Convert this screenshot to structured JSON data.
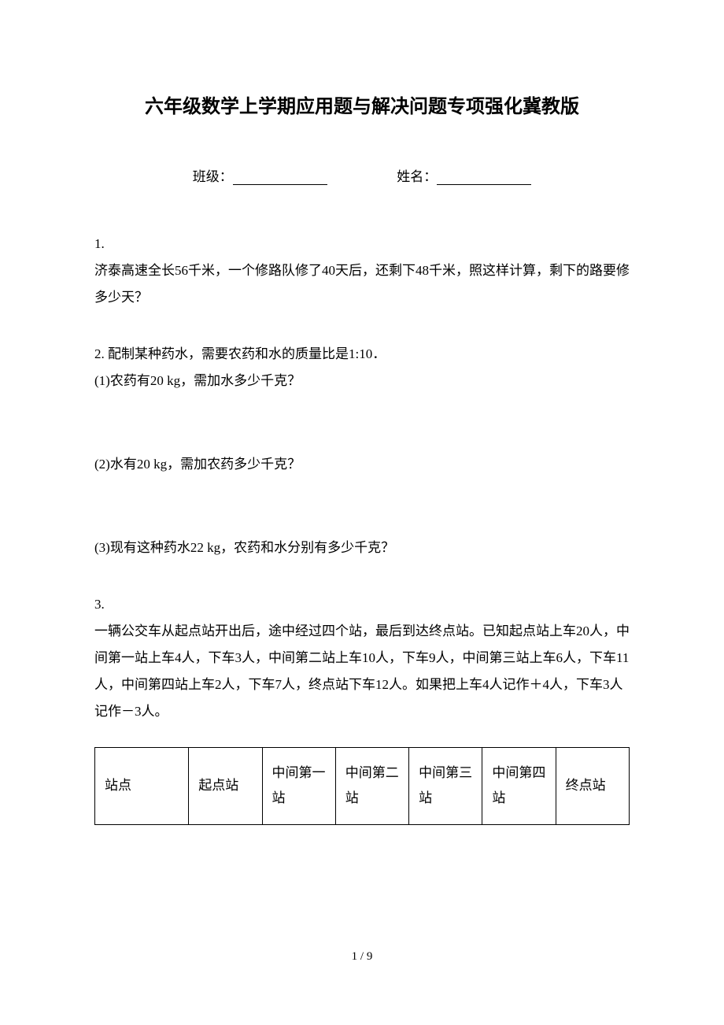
{
  "title": "六年级数学上学期应用题与解决问题专项强化冀教版",
  "formRow": {
    "classLabel": "班级：",
    "nameLabel": "姓名："
  },
  "q1": {
    "num": "1.",
    "text": "济泰高速全长56千米，一个修路队修了40天后，还剩下48千米，照这样计算，剩下的路要修多少天？"
  },
  "q2": {
    "intro": "2. 配制某种药水，需要农药和水的质量比是1:10．",
    "sub1": "(1)农药有20 kg，需加水多少千克？",
    "sub2": "(2)水有20 kg，需加农药多少千克？",
    "sub3": "(3)现有这种药水22 kg，农药和水分别有多少千克？"
  },
  "q3": {
    "num": "3.",
    "text": "一辆公交车从起点站开出后，途中经过四个站，最后到达终点站。已知起点站上车20人，中间第一站上车4人，下车3人，中间第二站上车10人，下车9人，中间第三站上车6人，下车11人，中间第四站上车2人，下车7人，终点站下车12人。如果把上车4人记作＋4人，下车3人记作－3人。"
  },
  "tableHeaders": {
    "col1": "站点",
    "col2": "起点站",
    "col3": "中间第一站",
    "col4": "中间第二站",
    "col5": "中间第三站",
    "col6": "中间第四站",
    "col7": "终点站"
  },
  "pageNum": "1 / 9",
  "colors": {
    "text": "#000000",
    "background": "#ffffff",
    "border": "#000000"
  },
  "layout": {
    "pageWidth": 920,
    "pageHeight": 1302,
    "titleFontSize": 24,
    "bodyFontSize": 17,
    "lineHeight": 2.0
  }
}
